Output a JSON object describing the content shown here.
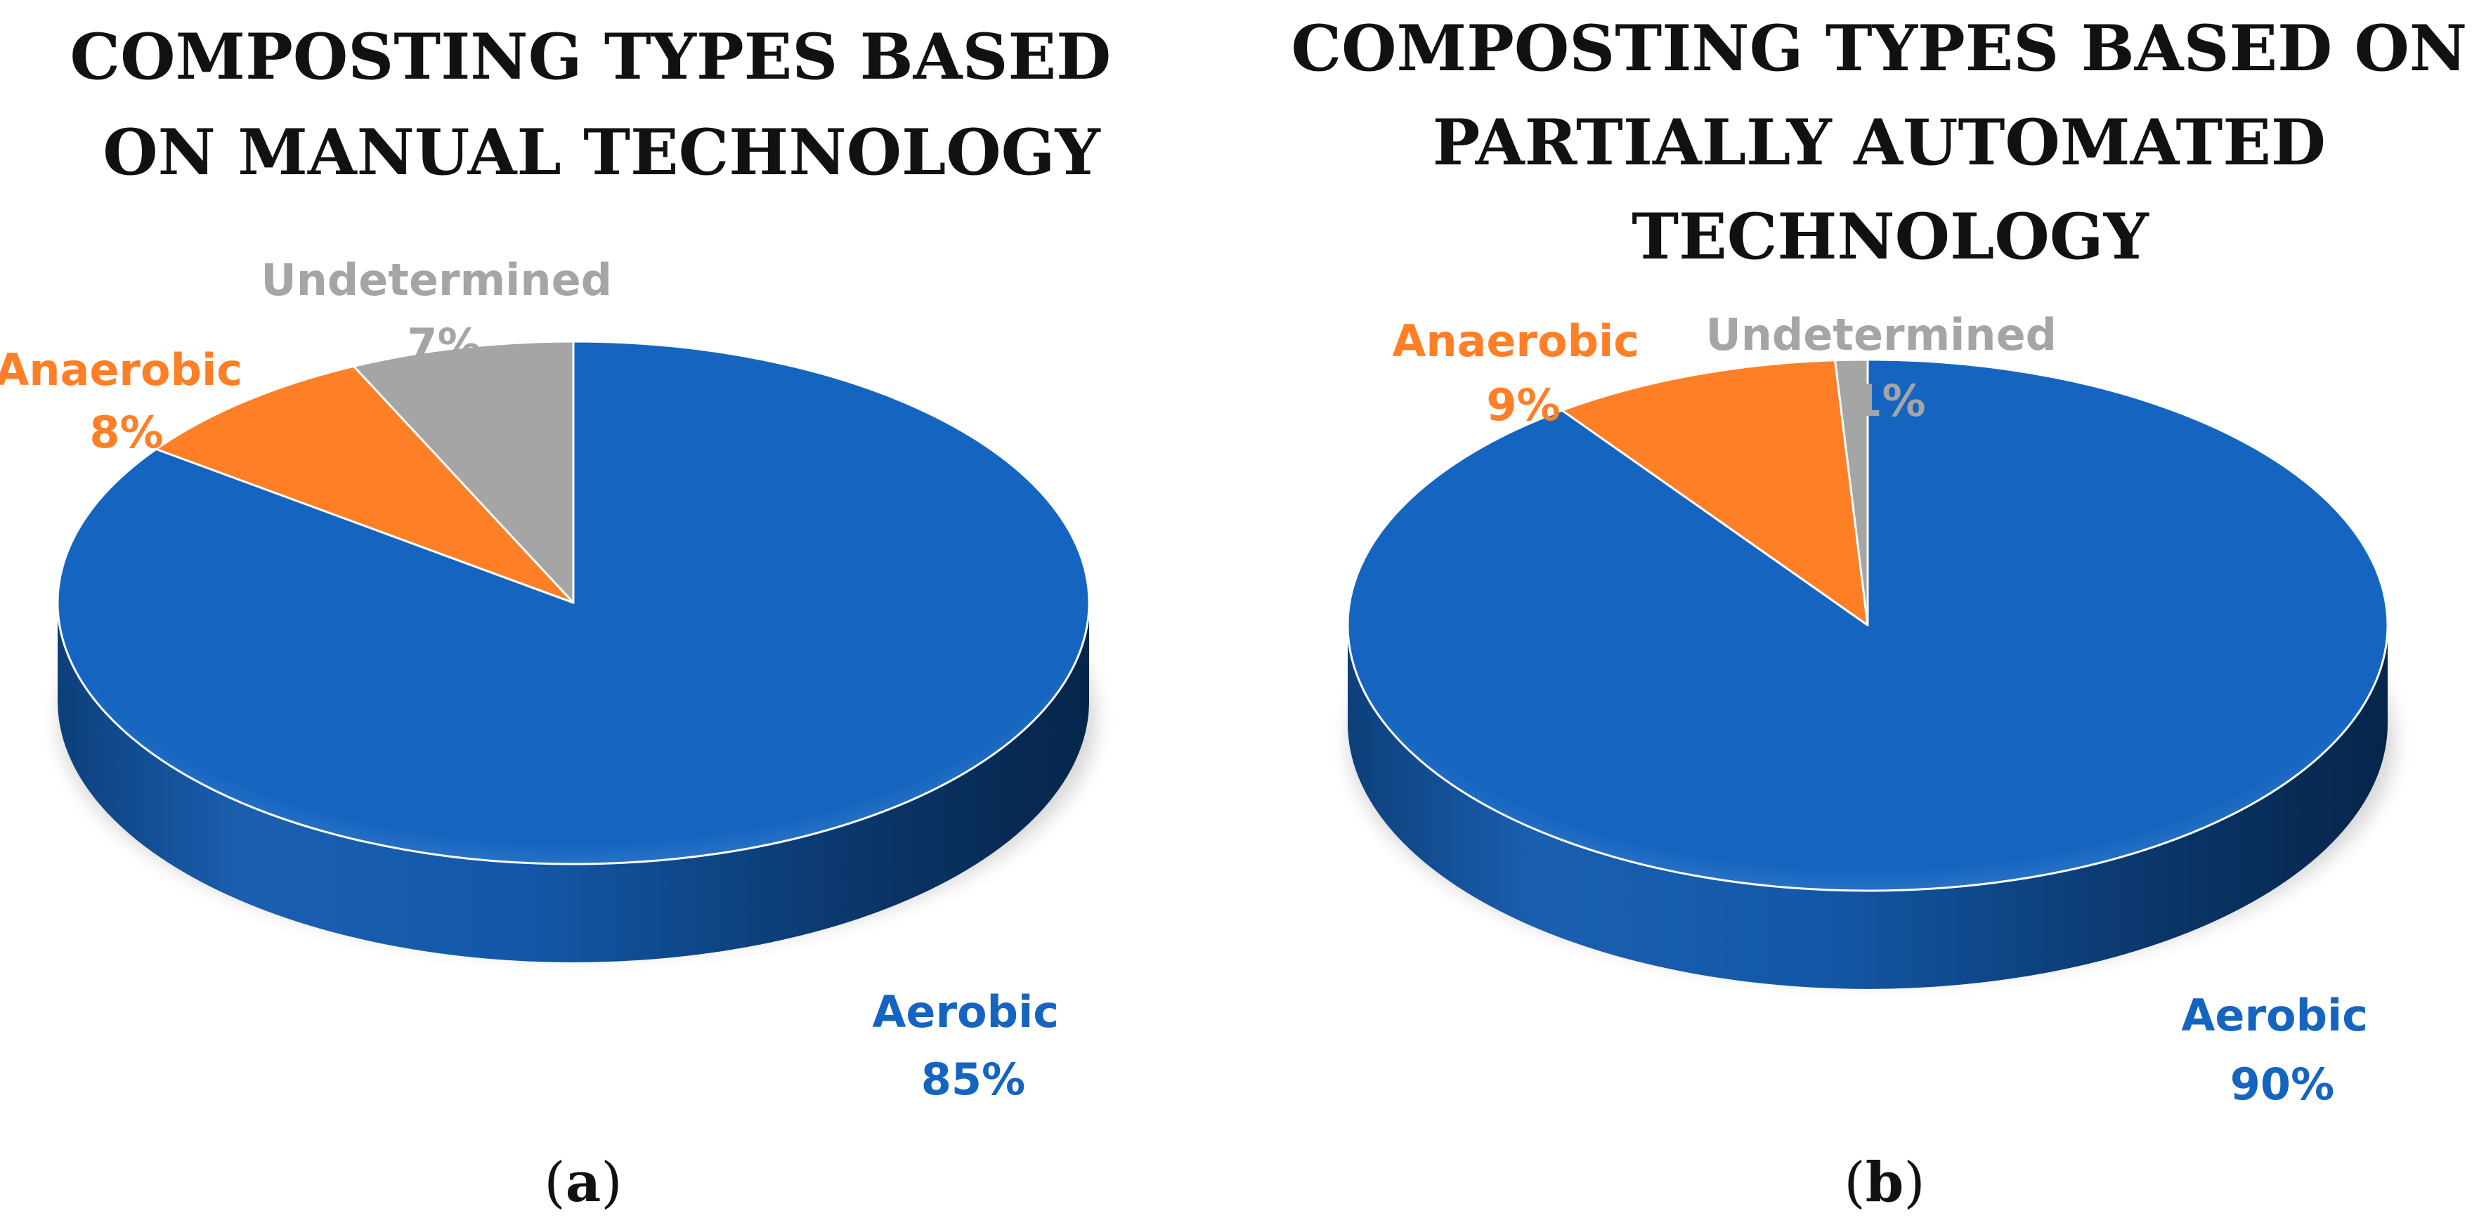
{
  "colors": {
    "aerobic": "#1565C0",
    "anaerobic": "#FF7F27",
    "undetermined": "#A5A5A5"
  },
  "chart_data": [
    {
      "type": "pie",
      "title": "COMPOSTING TYPES BASED ON MANUAL TECHNOLOGY",
      "title_lines": [
        "COMPOSTING TYPES BASED",
        "ON MANUAL TECHNOLOGY"
      ],
      "panel_label": "a",
      "categories": [
        "Aerobic",
        "Anaerobic",
        "Undetermined"
      ],
      "values": [
        85,
        8,
        7
      ],
      "labels": [
        "85%",
        "8%",
        "7%"
      ]
    },
    {
      "type": "pie",
      "title": "COMPOSTING TYPES BASED ON PARTIALLY AUTOMATED TECHNOLOGY",
      "title_lines": [
        "COMPOSTING TYPES BASED ON",
        "PARTIALLY AUTOMATED",
        "TECHNOLOGY"
      ],
      "panel_label": "b",
      "categories": [
        "Aerobic",
        "Anaerobic",
        "Undetermined"
      ],
      "values": [
        90,
        9,
        1
      ],
      "labels": [
        "90%",
        "9%",
        "1%"
      ]
    }
  ]
}
